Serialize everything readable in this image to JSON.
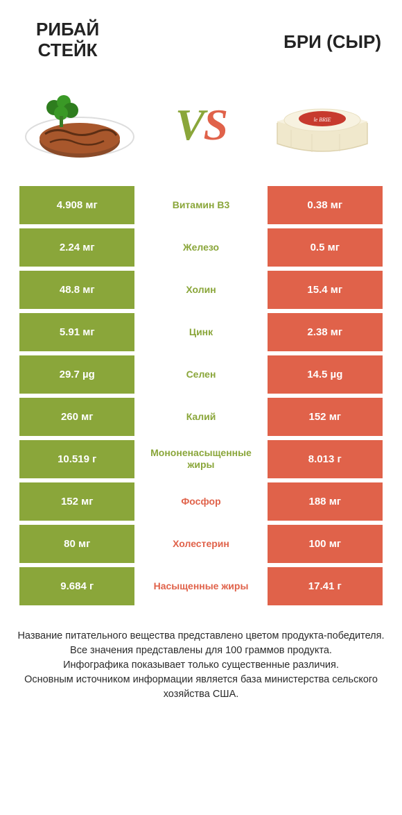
{
  "header": {
    "left_title": "РИБАЙ\nСТЕЙК",
    "right_title": "БРИ (СЫР)"
  },
  "vs": {
    "v": "V",
    "s": "S"
  },
  "colors": {
    "left": "#8aa63a",
    "right": "#e0624a",
    "bg": "#ffffff",
    "text": "#2a2a2a"
  },
  "rows": [
    {
      "left": "4.908 мг",
      "mid": "Витамин B3",
      "right": "0.38 мг",
      "winner": "left"
    },
    {
      "left": "2.24 мг",
      "mid": "Железо",
      "right": "0.5 мг",
      "winner": "left"
    },
    {
      "left": "48.8 мг",
      "mid": "Холин",
      "right": "15.4 мг",
      "winner": "left"
    },
    {
      "left": "5.91 мг",
      "mid": "Цинк",
      "right": "2.38 мг",
      "winner": "left"
    },
    {
      "left": "29.7 µg",
      "mid": "Селен",
      "right": "14.5 µg",
      "winner": "left"
    },
    {
      "left": "260 мг",
      "mid": "Калий",
      "right": "152 мг",
      "winner": "left"
    },
    {
      "left": "10.519 г",
      "mid": "Мононенасыщенные жиры",
      "right": "8.013 г",
      "winner": "left"
    },
    {
      "left": "152 мг",
      "mid": "Фосфор",
      "right": "188 мг",
      "winner": "right"
    },
    {
      "left": "80 мг",
      "mid": "Холестерин",
      "right": "100 мг",
      "winner": "right"
    },
    {
      "left": "9.684 г",
      "mid": "Насыщенные жиры",
      "right": "17.41 г",
      "winner": "right"
    }
  ],
  "footer": {
    "line1": "Название питательного вещества представлено цветом продукта-победителя.",
    "line2": "Все значения представлены для 100 граммов продукта.",
    "line3": "Инфографика показывает только существенные различия.",
    "line4": "Основным источником информации является база министерства сельского хозяйства США."
  }
}
